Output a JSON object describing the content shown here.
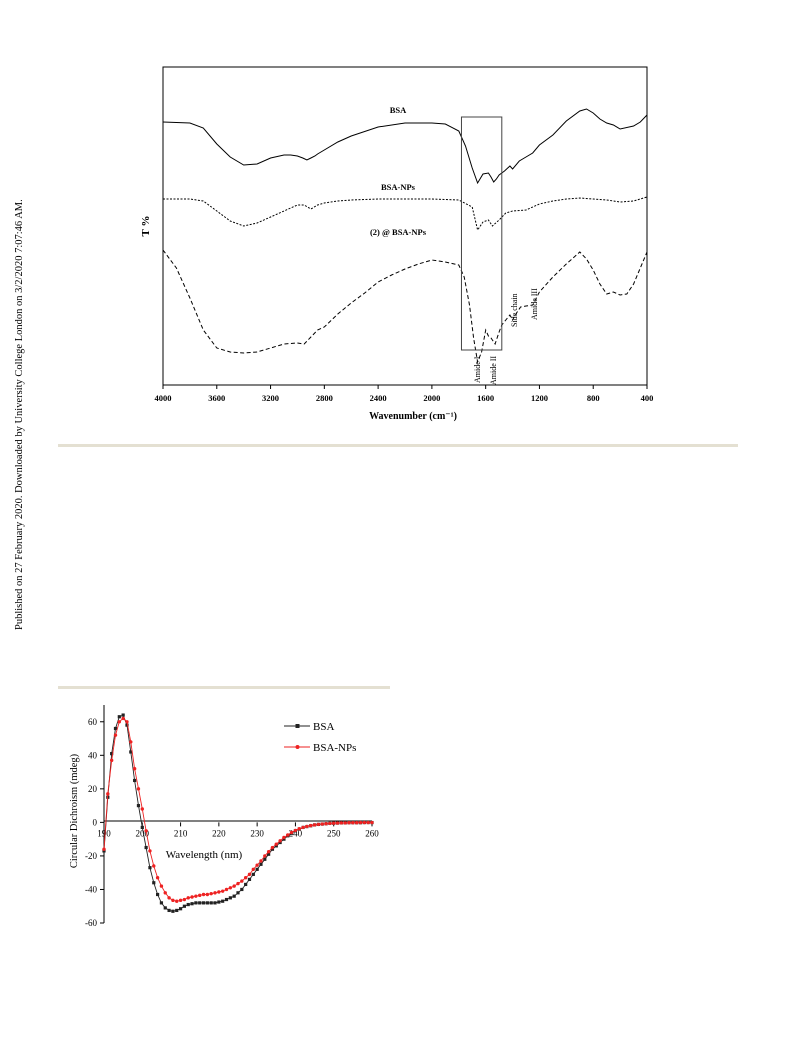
{
  "page": {
    "sidebar_note": "Published on 27 February 2020. Downloaded by University College London on 3/2/2020 7:07:46 AM."
  },
  "chart_data": [
    {
      "type": "line",
      "xlabel": "Wavenumber (cm⁻¹)",
      "ylabel": "T %",
      "xlim": [
        4000,
        400
      ],
      "x_reversed": true,
      "xticks": [
        4000,
        3600,
        3200,
        2800,
        2400,
        2000,
        1600,
        1200,
        800,
        400
      ],
      "highlight_box": [
        1780,
        1480
      ],
      "series": [
        {
          "name": "BSA",
          "style": "solid",
          "x": [
            4000,
            3800,
            3700,
            3600,
            3500,
            3400,
            3300,
            3200,
            3100,
            3050,
            3000,
            2960,
            2930,
            2900,
            2870,
            2850,
            2800,
            2700,
            2600,
            2400,
            2200,
            2000,
            1900,
            1800,
            1750,
            1700,
            1660,
            1620,
            1580,
            1560,
            1540,
            1520,
            1500,
            1460,
            1420,
            1400,
            1350,
            1300,
            1250,
            1200,
            1100,
            1000,
            900,
            850,
            800,
            750,
            700,
            650,
            600,
            500,
            450,
            400
          ],
          "y": [
            79,
            78,
            73,
            57,
            44,
            36,
            37,
            43,
            46,
            46,
            45,
            43,
            41,
            43,
            45,
            47,
            51,
            59,
            65,
            74,
            78,
            78,
            77,
            70,
            55,
            33,
            18,
            27,
            28,
            24,
            19,
            22,
            26,
            30,
            35,
            32,
            40,
            44,
            48,
            56,
            66,
            80,
            90,
            92,
            88,
            82,
            78,
            76,
            72,
            75,
            79,
            86
          ]
        },
        {
          "name": "BSA-NPs",
          "style": "dotted",
          "x": [
            4000,
            3800,
            3700,
            3600,
            3500,
            3400,
            3300,
            3200,
            3100,
            3000,
            2950,
            2900,
            2850,
            2800,
            2700,
            2600,
            2400,
            2200,
            2000,
            1800,
            1700,
            1660,
            1620,
            1580,
            1550,
            1500,
            1450,
            1400,
            1300,
            1200,
            1100,
            1000,
            900,
            800,
            700,
            600,
            500,
            400
          ],
          "y": [
            0,
            0,
            -2,
            -12,
            -22,
            -27,
            -24,
            -18,
            -12,
            -6,
            -6,
            -10,
            -6,
            -4,
            -2,
            -1,
            0,
            0,
            0,
            -1,
            -8,
            -31,
            -23,
            -21,
            -27,
            -21,
            -14,
            -12,
            -11,
            -5,
            -2,
            0,
            1,
            0,
            -1,
            -3,
            -2,
            2
          ]
        },
        {
          "name": "(2) @ BSA-NPs",
          "style": "dashed",
          "x": [
            4000,
            3900,
            3800,
            3700,
            3600,
            3500,
            3400,
            3300,
            3200,
            3100,
            3000,
            2950,
            2900,
            2850,
            2800,
            2700,
            2600,
            2500,
            2400,
            2300,
            2200,
            2100,
            2000,
            1900,
            1800,
            1760,
            1720,
            1690,
            1660,
            1630,
            1600,
            1580,
            1560,
            1530,
            1500,
            1480,
            1450,
            1420,
            1400,
            1380,
            1340,
            1300,
            1250,
            1200,
            1100,
            1000,
            950,
            900,
            850,
            800,
            750,
            700,
            650,
            600,
            550,
            500,
            450,
            400
          ],
          "y": [
            -18,
            -36,
            -66,
            -98,
            -116,
            -120,
            -121,
            -120,
            -116,
            -112,
            -111,
            -112,
            -105,
            -98,
            -95,
            -82,
            -71,
            -61,
            -50,
            -43,
            -37,
            -32,
            -28,
            -30,
            -33,
            -45,
            -73,
            -106,
            -130,
            -120,
            -98,
            -104,
            -106,
            -112,
            -100,
            -93,
            -88,
            -83,
            -88,
            -83,
            -75,
            -74,
            -73,
            -60,
            -45,
            -32,
            -26,
            -20,
            -27,
            -38,
            -52,
            -62,
            -60,
            -63,
            -62,
            -52,
            -36,
            -20
          ]
        }
      ],
      "labels": {
        "bsa": "BSA",
        "bsa_nps": "BSA-NPs",
        "loaded": "(2) @ BSA-NPs",
        "amide1": "Amide I",
        "amide2": "Amide II",
        "side_chain": "Side chain",
        "amide3": "Amide III"
      },
      "grid": false
    },
    {
      "type": "line",
      "xlabel": "Wavelength (nm)",
      "ylabel": "Circular Dichroism (mdeg)",
      "xlim": [
        190,
        260
      ],
      "ylim": [
        -60,
        70
      ],
      "xticks": [
        190,
        200,
        210,
        220,
        230,
        240,
        250,
        260
      ],
      "yticks": [
        60,
        40,
        20,
        0,
        -20,
        -40,
        -60
      ],
      "legend_position": "top-right",
      "grid": false,
      "series": [
        {
          "name": "BSA",
          "color": "#222222",
          "marker": "square",
          "x": [
            190,
            191,
            192,
            193,
            194,
            195,
            196,
            197,
            198,
            199,
            200,
            201,
            202,
            203,
            204,
            205,
            206,
            207,
            208,
            209,
            210,
            211,
            212,
            213,
            214,
            215,
            216,
            217,
            218,
            219,
            220,
            221,
            222,
            223,
            224,
            225,
            226,
            227,
            228,
            229,
            230,
            231,
            232,
            233,
            234,
            235,
            236,
            237,
            238,
            239,
            240,
            241,
            242,
            243,
            244,
            245,
            246,
            247,
            248,
            249,
            250,
            251,
            252,
            253,
            254,
            255,
            256,
            257,
            258,
            259,
            260
          ],
          "y": [
            -17,
            15,
            41,
            56,
            63,
            64,
            58,
            42,
            25,
            10,
            -3,
            -15,
            -27,
            -36,
            -43,
            -48,
            -51,
            -52.5,
            -53,
            -52.5,
            -51.5,
            -50,
            -49,
            -48.5,
            -48,
            -48,
            -48,
            -48,
            -48,
            -48,
            -47.5,
            -47,
            -46,
            -45,
            -44,
            -42,
            -40,
            -37,
            -34,
            -31,
            -28,
            -25,
            -22,
            -19,
            -16,
            -14,
            -12,
            -10,
            -8,
            -6.5,
            -5,
            -4,
            -3,
            -2.5,
            -2,
            -1.5,
            -1.2,
            -1,
            -0.8,
            -0.6,
            -0.5,
            -0.4,
            -0.3,
            -0.3,
            -0.2,
            -0.2,
            -0.2,
            -0.2,
            -0.1,
            -0.1,
            -0.1
          ]
        },
        {
          "name": "BSA-NPs",
          "color": "#ee2222",
          "marker": "circle",
          "x": [
            190,
            191,
            192,
            193,
            194,
            195,
            196,
            197,
            198,
            199,
            200,
            201,
            202,
            203,
            204,
            205,
            206,
            207,
            208,
            209,
            210,
            211,
            212,
            213,
            214,
            215,
            216,
            217,
            218,
            219,
            220,
            221,
            222,
            223,
            224,
            225,
            226,
            227,
            228,
            229,
            230,
            231,
            232,
            233,
            234,
            235,
            236,
            237,
            238,
            239,
            240,
            241,
            242,
            243,
            244,
            245,
            246,
            247,
            248,
            249,
            250,
            251,
            252,
            253,
            254,
            255,
            256,
            257,
            258,
            259,
            260
          ],
          "y": [
            -16,
            17,
            37,
            52,
            60,
            62,
            60,
            48,
            32,
            20,
            8,
            -5,
            -17,
            -26,
            -33,
            -38,
            -42,
            -45,
            -46.5,
            -47,
            -46.5,
            -46,
            -45,
            -44.5,
            -44,
            -43.5,
            -43,
            -43,
            -42.5,
            -42,
            -41.5,
            -41,
            -40,
            -39,
            -38,
            -36.5,
            -35,
            -33,
            -31,
            -28,
            -25.5,
            -23,
            -20,
            -17.5,
            -15,
            -13,
            -11,
            -9,
            -7.5,
            -6,
            -4.8,
            -3.8,
            -3,
            -2.4,
            -1.9,
            -1.5,
            -1.2,
            -1,
            -0.8,
            -0.6,
            -0.5,
            -0.4,
            -0.3,
            -0.3,
            -0.2,
            -0.2,
            -0.2,
            -0.1,
            -0.1,
            -0.1,
            -0.1
          ]
        }
      ]
    }
  ]
}
